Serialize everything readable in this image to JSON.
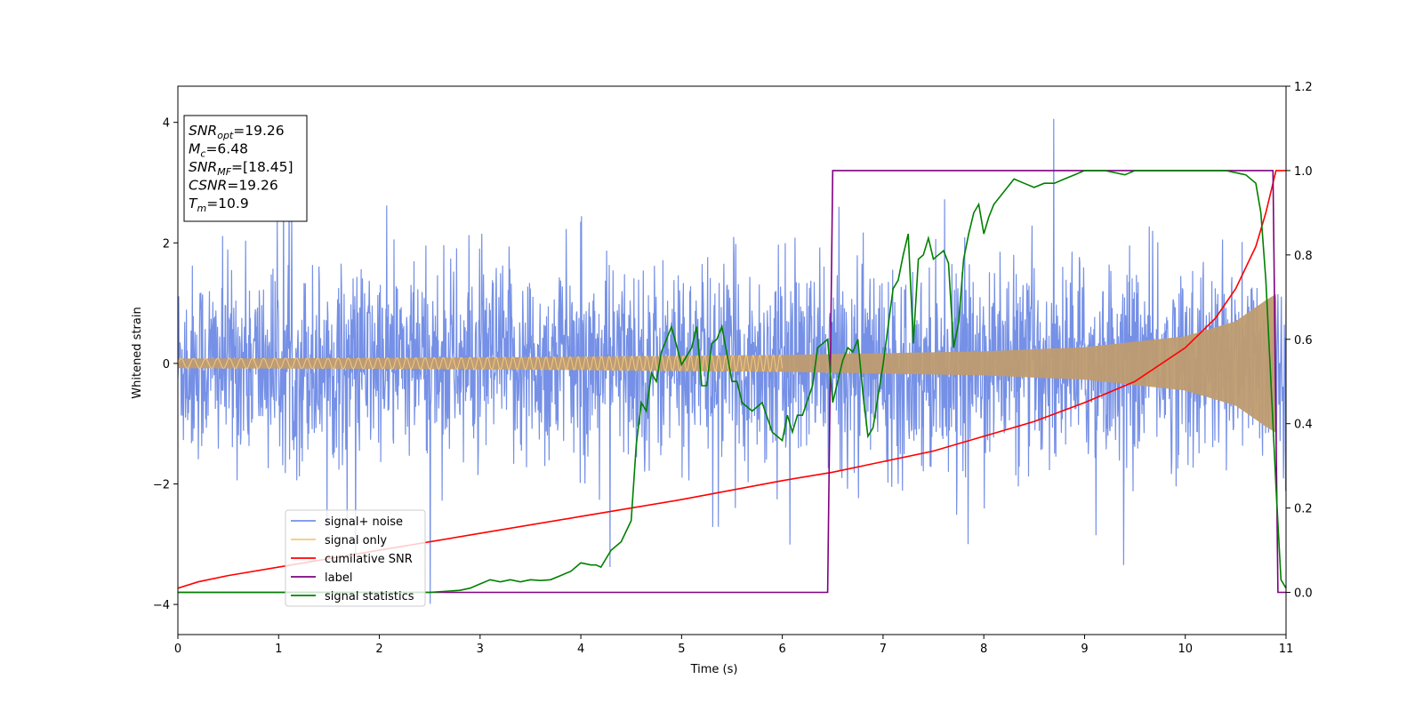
{
  "chart_data": {
    "type": "line",
    "xlabel": "Time (s)",
    "ylabel": "Whitened strain",
    "xlim": [
      0,
      11
    ],
    "ylim": [
      -4.5,
      4.6
    ],
    "y2lim": [
      -0.1,
      1.2
    ],
    "x_ticks": [
      "0",
      "1",
      "2",
      "3",
      "4",
      "5",
      "6",
      "7",
      "8",
      "9",
      "10",
      "11"
    ],
    "y_ticks": [
      "4",
      "2",
      "0",
      "−2",
      "−4"
    ],
    "y2_ticks": [
      "1.2",
      "1.0",
      "0.8",
      "0.6",
      "0.4",
      "0.2",
      "0.0"
    ],
    "grid": false,
    "legend_position": "lower-left",
    "annotation": {
      "lines": [
        {
          "name": "SNR",
          "sub": "opt",
          "value": "=19.26"
        },
        {
          "name": "M",
          "sub": "c",
          "value": "=6.48"
        },
        {
          "name": "SNR",
          "sub": "MF",
          "value": "=[18.45]"
        },
        {
          "name": "CSNR",
          "sub": "",
          "value": "=19.26"
        },
        {
          "name": "T",
          "sub": "m",
          "value": "=10.9"
        }
      ]
    },
    "series": [
      {
        "name": "signal+ noise",
        "color": "#7590e6",
        "axis": "left",
        "description_values": {
          "noise_band_std": 0.8,
          "spike_max": 4.2,
          "spike_min": -4.1
        }
      },
      {
        "name": "signal only",
        "color": "#f5c87a",
        "axis": "left",
        "envelope": {
          "x": [
            0,
            2,
            4,
            6,
            8,
            9,
            10,
            10.5,
            10.8,
            10.9,
            11
          ],
          "amp": [
            0.08,
            0.09,
            0.11,
            0.14,
            0.2,
            0.27,
            0.45,
            0.7,
            1.05,
            1.15,
            0
          ]
        }
      },
      {
        "name": "cumilative SNR",
        "color": "#ff0000",
        "axis": "right",
        "x": [
          0,
          0.2,
          0.5,
          1,
          2,
          3,
          4,
          5,
          6,
          6.5,
          7,
          7.5,
          8,
          8.5,
          9,
          9.5,
          10,
          10.3,
          10.5,
          10.7,
          10.8,
          10.9,
          11
        ],
        "y": [
          0.01,
          0.025,
          0.04,
          0.06,
          0.1,
          0.14,
          0.18,
          0.22,
          0.265,
          0.285,
          0.31,
          0.335,
          0.37,
          0.405,
          0.45,
          0.5,
          0.58,
          0.65,
          0.72,
          0.82,
          0.9,
          1.0,
          1.0
        ]
      },
      {
        "name": "label",
        "color": "#800080",
        "axis": "right",
        "x": [
          0,
          6.45,
          6.5,
          10.87,
          10.92,
          11
        ],
        "y": [
          0,
          0,
          1,
          1,
          0,
          0
        ]
      },
      {
        "name": "signal statistics",
        "color": "#008000",
        "axis": "right",
        "x": [
          0,
          0.5,
          1,
          1.5,
          2,
          2.5,
          2.8,
          2.9,
          3.0,
          3.1,
          3.2,
          3.3,
          3.4,
          3.5,
          3.6,
          3.7,
          3.8,
          3.9,
          4.0,
          4.1,
          4.15,
          4.2,
          4.3,
          4.4,
          4.5,
          4.55,
          4.6,
          4.65,
          4.7,
          4.75,
          4.8,
          4.85,
          4.9,
          5.0,
          5.1,
          5.15,
          5.2,
          5.25,
          5.3,
          5.35,
          5.4,
          5.5,
          5.55,
          5.6,
          5.7,
          5.8,
          5.9,
          6.0,
          6.05,
          6.1,
          6.15,
          6.2,
          6.3,
          6.35,
          6.45,
          6.5,
          6.55,
          6.6,
          6.65,
          6.7,
          6.75,
          6.8,
          6.85,
          6.9,
          7.0,
          7.1,
          7.15,
          7.2,
          7.25,
          7.3,
          7.35,
          7.4,
          7.45,
          7.5,
          7.55,
          7.6,
          7.65,
          7.7,
          7.75,
          7.8,
          7.85,
          7.9,
          7.95,
          8.0,
          8.05,
          8.1,
          8.2,
          8.3,
          8.4,
          8.5,
          8.6,
          8.7,
          8.8,
          8.9,
          9.0,
          9.2,
          9.4,
          9.5,
          9.6,
          9.8,
          10.0,
          10.2,
          10.4,
          10.6,
          10.7,
          10.75,
          10.8,
          10.85,
          10.9,
          10.95,
          11.0
        ],
        "y": [
          0,
          0.0,
          0,
          0,
          0,
          0,
          0.005,
          0.01,
          0.02,
          0.03,
          0.025,
          0.03,
          0.025,
          0.03,
          0.028,
          0.03,
          0.04,
          0.05,
          0.07,
          0.065,
          0.065,
          0.06,
          0.1,
          0.12,
          0.17,
          0.35,
          0.45,
          0.43,
          0.52,
          0.5,
          0.57,
          0.6,
          0.63,
          0.54,
          0.58,
          0.63,
          0.49,
          0.49,
          0.59,
          0.6,
          0.63,
          0.5,
          0.5,
          0.45,
          0.43,
          0.45,
          0.38,
          0.36,
          0.42,
          0.38,
          0.42,
          0.42,
          0.49,
          0.58,
          0.6,
          0.45,
          0.5,
          0.55,
          0.58,
          0.57,
          0.6,
          0.47,
          0.37,
          0.39,
          0.54,
          0.72,
          0.74,
          0.8,
          0.85,
          0.59,
          0.79,
          0.8,
          0.84,
          0.79,
          0.8,
          0.81,
          0.78,
          0.58,
          0.64,
          0.79,
          0.85,
          0.9,
          0.92,
          0.85,
          0.89,
          0.92,
          0.95,
          0.98,
          0.97,
          0.96,
          0.97,
          0.97,
          0.98,
          0.99,
          1.0,
          1.0,
          0.99,
          1.0,
          1.0,
          1.0,
          1.0,
          1.0,
          1.0,
          0.99,
          0.97,
          0.9,
          0.74,
          0.5,
          0.25,
          0.03,
          0.01
        ]
      }
    ]
  }
}
